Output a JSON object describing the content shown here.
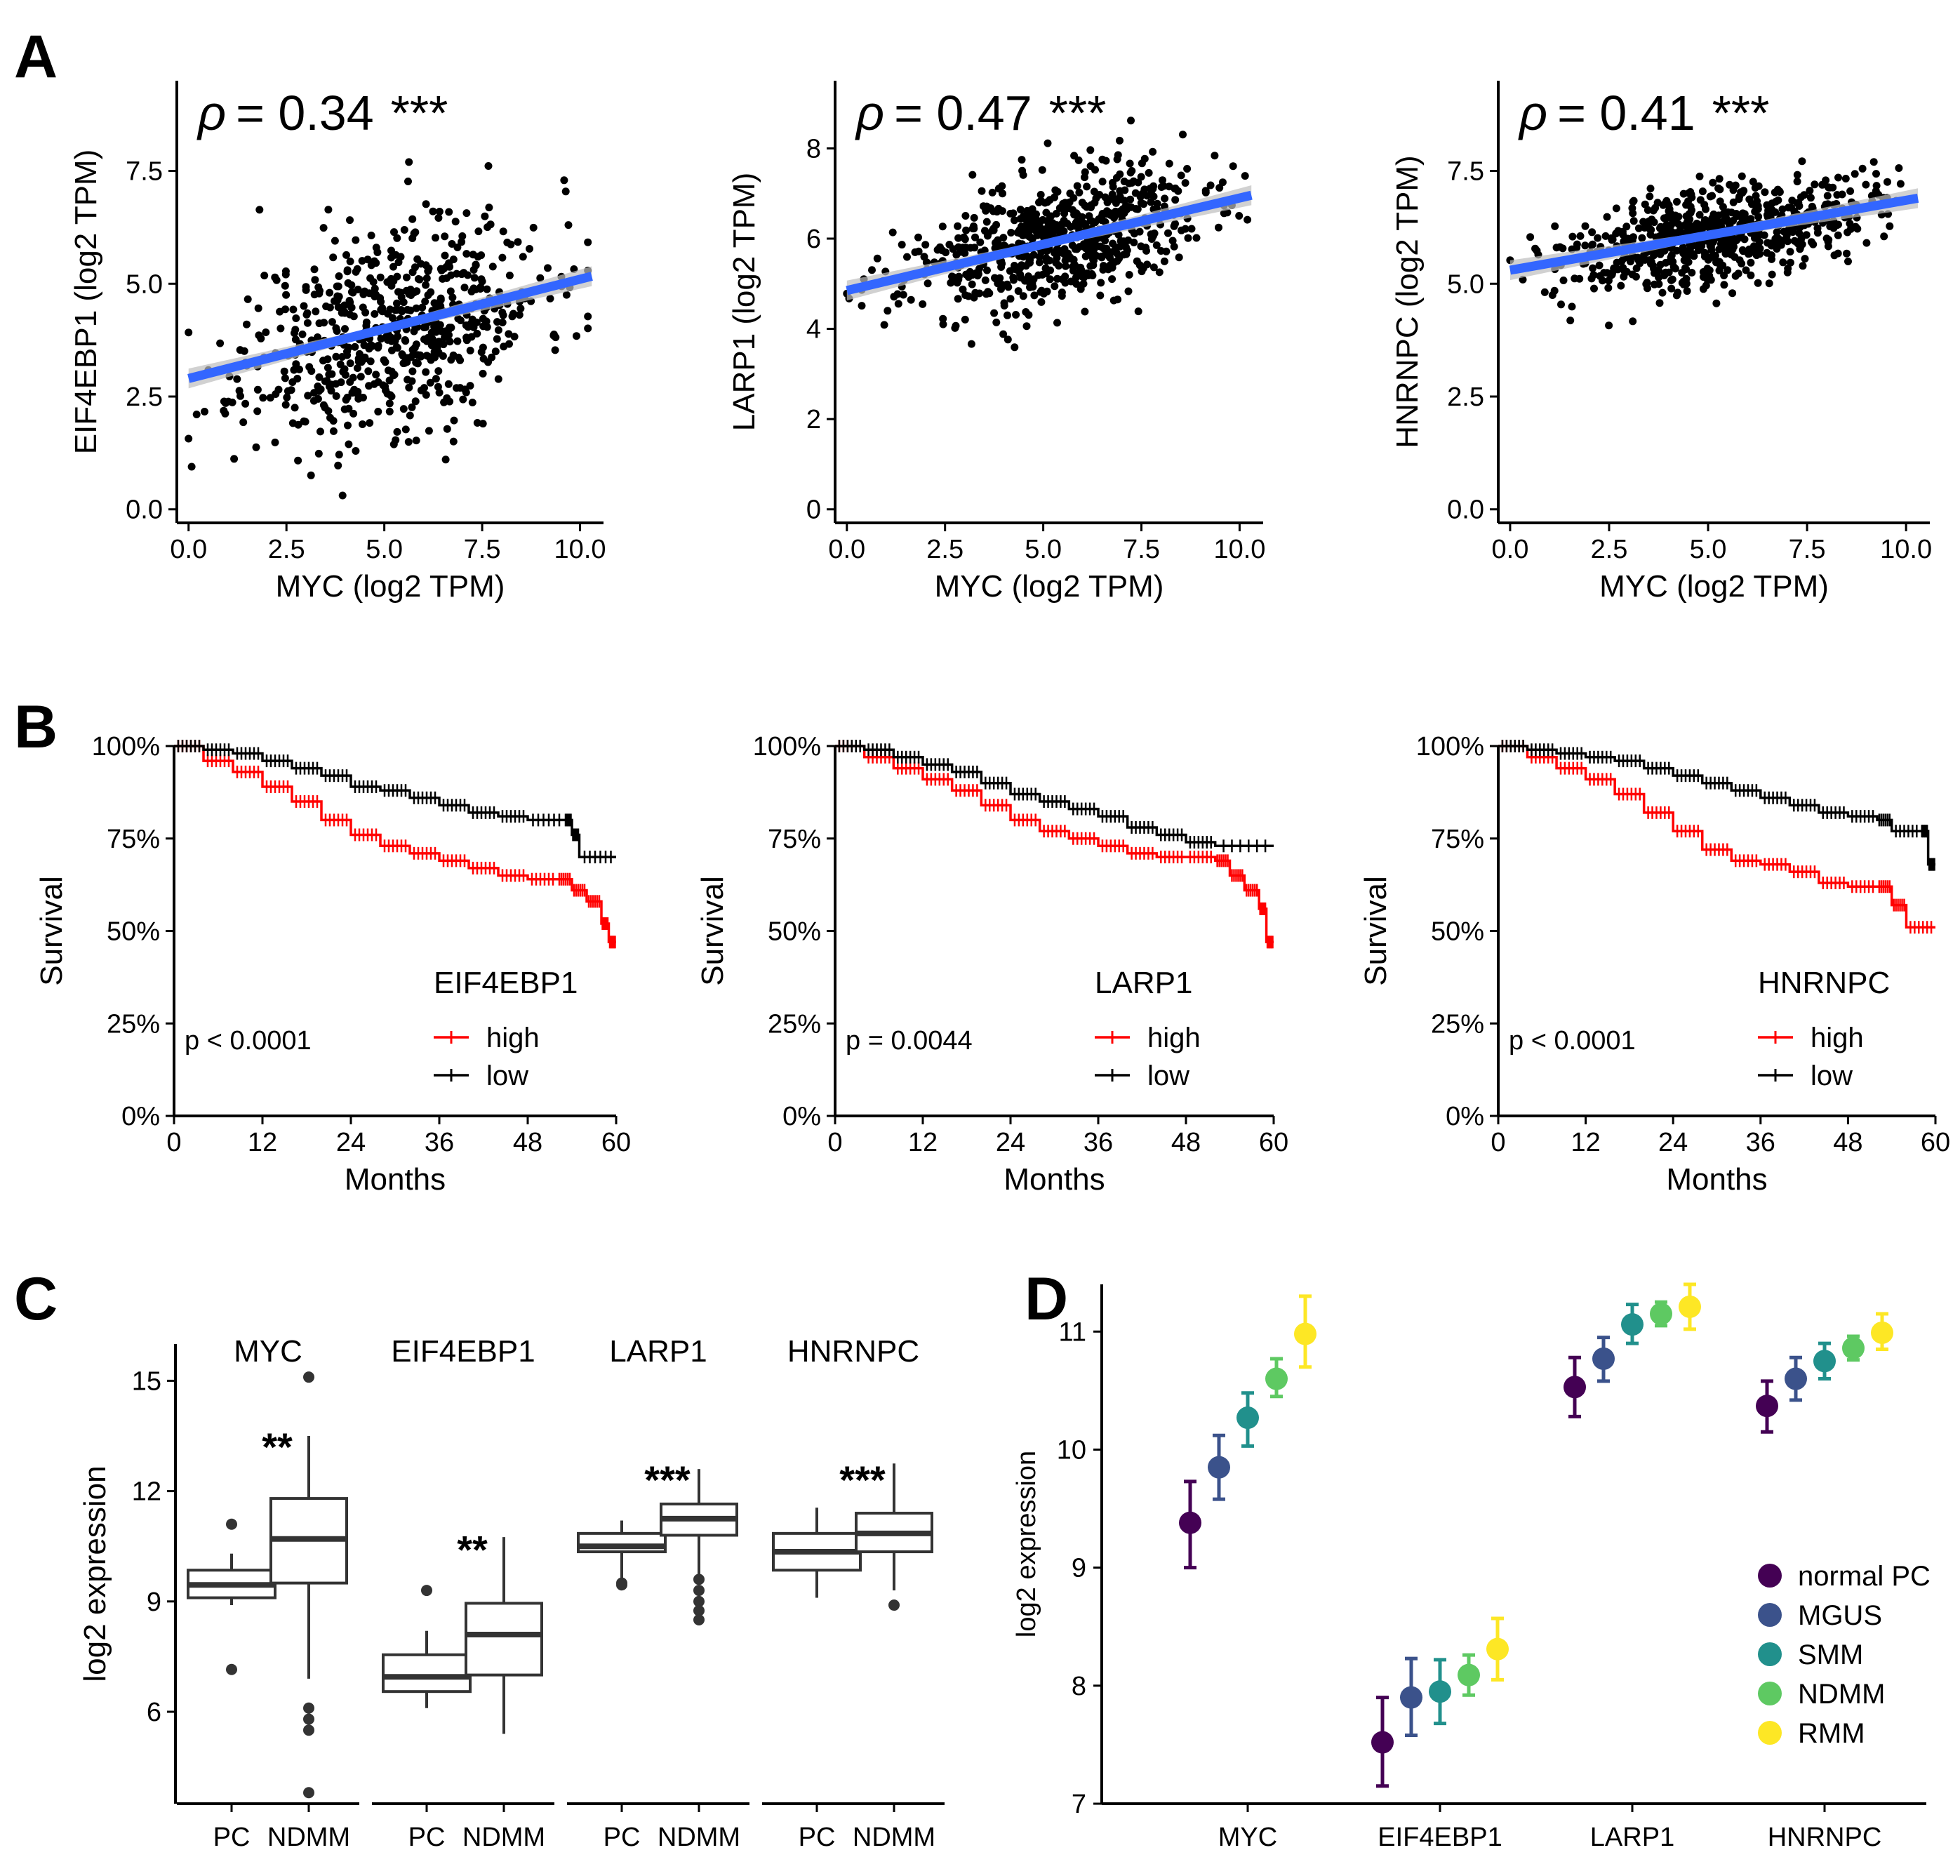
{
  "panel_labels": {
    "A": "A",
    "B": "B",
    "C": "C",
    "D": "D"
  },
  "colors": {
    "points": "#000000",
    "regression": "#3366ff",
    "ci_band": "#bdbdbd",
    "high": "#ff0000",
    "low": "#000000",
    "box": "#333333",
    "normal_pc": "#440154",
    "mgus": "#3b528b",
    "smm": "#21908c",
    "ndmm": "#5ec962",
    "rmm": "#fde725"
  },
  "chart_data": [
    {
      "id": "A1",
      "type": "scatter",
      "xlabel": "MYC (log2 TPM)",
      "ylabel": "EIF4EBP1 (log2 TPM)",
      "xlim": [
        -0.3,
        10.6
      ],
      "ylim": [
        -0.3,
        9.5
      ],
      "xticks": [
        0,
        2.5,
        5,
        7.5,
        10
      ],
      "xtick_labels": [
        "0.0",
        "2.5",
        "5.0",
        "7.5",
        "10.0"
      ],
      "yticks": [
        0,
        2.5,
        5,
        7.5
      ],
      "ytick_labels": [
        "0.0",
        "2.5",
        "5.0",
        "7.5"
      ],
      "rho_symbol": "ρ",
      "rho_eq": "= 0.34",
      "stars": "***",
      "fit": {
        "intercept": 2.9,
        "slope": 0.22,
        "x0": 0,
        "x1": 10.3
      },
      "sim": {
        "n": 650,
        "xmean": 5.2,
        "xsd": 1.9,
        "resid_sd": 1.15,
        "seed": 11
      }
    },
    {
      "id": "A2",
      "type": "scatter",
      "xlabel": "MYC (log2 TPM)",
      "ylabel": "LARP1 (log2 TPM)",
      "xlim": [
        -0.3,
        10.6
      ],
      "ylim": [
        -0.3,
        9.5
      ],
      "xticks": [
        0,
        2.5,
        5,
        7.5,
        10
      ],
      "xtick_labels": [
        "0.0",
        "2.5",
        "5.0",
        "7.5",
        "10.0"
      ],
      "yticks": [
        0,
        2,
        4,
        6,
        8
      ],
      "ytick_labels": [
        "0",
        "2",
        "4",
        "6",
        "8"
      ],
      "rho_symbol": "ρ",
      "rho_eq": "= 0.47",
      "stars": "***",
      "fit": {
        "intercept": 4.85,
        "slope": 0.205,
        "x0": 0,
        "x1": 10.3
      },
      "sim": {
        "n": 650,
        "xmean": 5.2,
        "xsd": 1.9,
        "resid_sd": 0.72,
        "seed": 23
      }
    },
    {
      "id": "A3",
      "type": "scatter",
      "xlabel": "MYC (log2 TPM)",
      "ylabel": "HNRNPC (log2 TPM)",
      "xlim": [
        -0.3,
        10.6
      ],
      "ylim": [
        -0.3,
        9.5
      ],
      "xticks": [
        0,
        2.5,
        5,
        7.5,
        10
      ],
      "xtick_labels": [
        "0.0",
        "2.5",
        "5.0",
        "7.5",
        "10.0"
      ],
      "yticks": [
        0,
        2.5,
        5,
        7.5
      ],
      "ytick_labels": [
        "0.0",
        "2.5",
        "5.0",
        "7.5"
      ],
      "rho_symbol": "ρ",
      "rho_eq": "= 0.41",
      "stars": "***",
      "fit": {
        "intercept": 5.3,
        "slope": 0.155,
        "x0": 0,
        "x1": 10.3
      },
      "sim": {
        "n": 650,
        "xmean": 5.2,
        "xsd": 1.9,
        "resid_sd": 0.55,
        "seed": 37
      }
    },
    {
      "id": "B1",
      "type": "line",
      "subtype": "kaplan-meier",
      "xlabel": "Months",
      "ylabel": "Survival",
      "xlim": [
        0,
        60
      ],
      "ylim": [
        0,
        1
      ],
      "xticks": [
        0,
        12,
        24,
        36,
        48,
        60
      ],
      "xtick_labels": [
        "0",
        "12",
        "24",
        "36",
        "48",
        "60"
      ],
      "yticks": [
        0,
        0.25,
        0.5,
        0.75,
        1
      ],
      "ytick_labels": [
        "0%",
        "25%",
        "50%",
        "75%",
        "100%"
      ],
      "pvalue": "p < 0.0001",
      "legend_title": "EIF4EBP1",
      "series": [
        {
          "name": "high",
          "x": [
            0,
            4,
            8,
            12,
            16,
            20,
            24,
            28,
            32,
            36,
            40,
            44,
            48,
            52,
            54,
            56,
            58,
            59,
            60
          ],
          "y": [
            1,
            0.96,
            0.93,
            0.89,
            0.85,
            0.8,
            0.76,
            0.73,
            0.71,
            0.69,
            0.67,
            0.65,
            0.64,
            0.64,
            0.61,
            0.58,
            0.52,
            0.47,
            0.47
          ]
        },
        {
          "name": "low",
          "x": [
            0,
            4,
            8,
            12,
            16,
            20,
            24,
            28,
            32,
            36,
            40,
            44,
            48,
            53,
            54,
            55,
            60
          ],
          "y": [
            1,
            0.99,
            0.98,
            0.96,
            0.94,
            0.92,
            0.89,
            0.88,
            0.86,
            0.84,
            0.82,
            0.81,
            0.8,
            0.8,
            0.76,
            0.7,
            0.7
          ]
        }
      ]
    },
    {
      "id": "B2",
      "type": "line",
      "subtype": "kaplan-meier",
      "xlabel": "Months",
      "ylabel": "Survival",
      "xlim": [
        0,
        60
      ],
      "ylim": [
        0,
        1
      ],
      "xticks": [
        0,
        12,
        24,
        36,
        48,
        60
      ],
      "xtick_labels": [
        "0",
        "12",
        "24",
        "36",
        "48",
        "60"
      ],
      "yticks": [
        0,
        0.25,
        0.5,
        0.75,
        1
      ],
      "ytick_labels": [
        "0%",
        "25%",
        "50%",
        "75%",
        "100%"
      ],
      "pvalue": "p = 0.0044",
      "legend_title": "LARP1",
      "series": [
        {
          "name": "high",
          "x": [
            0,
            4,
            8,
            12,
            16,
            20,
            24,
            28,
            32,
            36,
            40,
            44,
            48,
            52,
            54,
            56,
            58,
            59,
            60
          ],
          "y": [
            1,
            0.97,
            0.94,
            0.91,
            0.88,
            0.84,
            0.8,
            0.77,
            0.75,
            0.73,
            0.71,
            0.7,
            0.7,
            0.69,
            0.65,
            0.61,
            0.56,
            0.47,
            0.47
          ]
        },
        {
          "name": "low",
          "x": [
            0,
            4,
            8,
            12,
            16,
            20,
            24,
            28,
            32,
            36,
            40,
            44,
            48,
            52,
            60
          ],
          "y": [
            1,
            0.99,
            0.97,
            0.95,
            0.93,
            0.9,
            0.87,
            0.85,
            0.83,
            0.81,
            0.78,
            0.76,
            0.74,
            0.73,
            0.73
          ]
        }
      ]
    },
    {
      "id": "B3",
      "type": "line",
      "subtype": "kaplan-meier",
      "xlabel": "Months",
      "ylabel": "Survival",
      "xlim": [
        0,
        60
      ],
      "ylim": [
        0,
        1
      ],
      "xticks": [
        0,
        12,
        24,
        36,
        48,
        60
      ],
      "xtick_labels": [
        "0",
        "12",
        "24",
        "36",
        "48",
        "60"
      ],
      "yticks": [
        0,
        0.25,
        0.5,
        0.75,
        1
      ],
      "ytick_labels": [
        "0%",
        "25%",
        "50%",
        "75%",
        "100%"
      ],
      "pvalue": "p < 0.0001",
      "legend_title": "HNRNPC",
      "series": [
        {
          "name": "high",
          "x": [
            0,
            4,
            8,
            12,
            16,
            20,
            24,
            28,
            32,
            36,
            40,
            44,
            48,
            52,
            54,
            56,
            60
          ],
          "y": [
            1,
            0.97,
            0.94,
            0.91,
            0.87,
            0.82,
            0.77,
            0.72,
            0.69,
            0.68,
            0.66,
            0.63,
            0.62,
            0.62,
            0.57,
            0.51,
            0.51
          ]
        },
        {
          "name": "low",
          "x": [
            0,
            4,
            8,
            12,
            16,
            20,
            24,
            28,
            32,
            36,
            40,
            44,
            48,
            52,
            54,
            58,
            59,
            60
          ],
          "y": [
            1,
            0.99,
            0.98,
            0.97,
            0.96,
            0.94,
            0.92,
            0.9,
            0.88,
            0.86,
            0.84,
            0.82,
            0.81,
            0.8,
            0.77,
            0.77,
            0.68,
            0.68
          ]
        }
      ]
    },
    {
      "id": "C",
      "type": "boxplot",
      "ylabel": "log2 expression",
      "ylim": [
        3.5,
        16
      ],
      "yticks": [
        6,
        9,
        12,
        15
      ],
      "ytick_labels": [
        "6",
        "9",
        "12",
        "15"
      ],
      "groups": [
        {
          "gene": "MYC",
          "stars": "**",
          "stars_y": 13.6,
          "boxes": [
            {
              "label": "PC",
              "min": 8.9,
              "q1": 9.1,
              "median": 9.45,
              "q3": 9.85,
              "max": 10.3,
              "outliers": [
                11.1,
                7.15
              ]
            },
            {
              "label": "NDMM",
              "min": 6.9,
              "q1": 9.5,
              "median": 10.7,
              "q3": 11.8,
              "max": 13.5,
              "outliers": [
                15.1,
                6.1,
                5.8,
                5.5,
                3.8
              ]
            }
          ]
        },
        {
          "gene": "EIF4EBP1",
          "stars": "**",
          "stars_y": 10.8,
          "boxes": [
            {
              "label": "PC",
              "min": 6.1,
              "q1": 6.55,
              "median": 6.95,
              "q3": 7.55,
              "max": 8.2,
              "outliers": [
                9.3
              ]
            },
            {
              "label": "NDMM",
              "min": 5.4,
              "q1": 7.0,
              "median": 8.1,
              "q3": 8.95,
              "max": 10.75,
              "outliers": []
            }
          ]
        },
        {
          "gene": "LARP1",
          "stars": "***",
          "stars_y": 12.7,
          "boxes": [
            {
              "label": "PC",
              "min": 9.6,
              "q1": 10.35,
              "median": 10.5,
              "q3": 10.85,
              "max": 11.2,
              "outliers": [
                9.5,
                9.45
              ]
            },
            {
              "label": "NDMM",
              "min": 9.75,
              "q1": 10.8,
              "median": 11.25,
              "q3": 11.65,
              "max": 12.6,
              "outliers": [
                9.6,
                9.3,
                9.0,
                8.75,
                8.5
              ]
            }
          ]
        },
        {
          "gene": "HNRNPC",
          "stars": "***",
          "stars_y": 12.7,
          "boxes": [
            {
              "label": "PC",
              "min": 9.1,
              "q1": 9.85,
              "median": 10.35,
              "q3": 10.85,
              "max": 11.55,
              "outliers": []
            },
            {
              "label": "NDMM",
              "min": 9.3,
              "q1": 10.35,
              "median": 10.85,
              "q3": 11.4,
              "max": 12.75,
              "outliers": [
                8.9
              ]
            }
          ]
        }
      ]
    },
    {
      "id": "D",
      "type": "scatter",
      "subtype": "point-errorbar",
      "ylabel": "log2 expression",
      "ylim": [
        7,
        11.4
      ],
      "yticks": [
        7,
        8,
        9,
        10,
        11
      ],
      "ytick_labels": [
        "7",
        "8",
        "9",
        "10",
        "11"
      ],
      "categories": [
        "MYC",
        "EIF4EBP1",
        "LARP1",
        "HNRNPC"
      ],
      "series": [
        {
          "name": "normal PC",
          "color_key": "normal_pc",
          "values": [
            9.38,
            7.52,
            10.53,
            10.37
          ],
          "lo": [
            9.0,
            7.15,
            10.28,
            10.15
          ],
          "hi": [
            9.73,
            7.9,
            10.78,
            10.58
          ]
        },
        {
          "name": "MGUS",
          "color_key": "mgus",
          "values": [
            9.85,
            7.9,
            10.77,
            10.6
          ],
          "lo": [
            9.58,
            7.58,
            10.58,
            10.42
          ],
          "hi": [
            10.12,
            8.23,
            10.95,
            10.78
          ]
        },
        {
          "name": "SMM",
          "color_key": "smm",
          "values": [
            10.27,
            7.95,
            11.06,
            10.75
          ],
          "lo": [
            10.03,
            7.68,
            10.9,
            10.6
          ],
          "hi": [
            10.48,
            8.22,
            11.23,
            10.9
          ]
        },
        {
          "name": "NDMM",
          "color_key": "ndmm",
          "values": [
            10.6,
            8.09,
            11.15,
            10.86
          ],
          "lo": [
            10.45,
            7.92,
            11.05,
            10.76
          ],
          "hi": [
            10.77,
            8.26,
            11.25,
            10.96
          ]
        },
        {
          "name": "RMM",
          "color_key": "rmm",
          "values": [
            10.98,
            8.31,
            11.21,
            10.99
          ],
          "lo": [
            10.7,
            8.05,
            11.02,
            10.85
          ],
          "hi": [
            11.3,
            8.57,
            11.4,
            11.15
          ]
        }
      ]
    }
  ]
}
